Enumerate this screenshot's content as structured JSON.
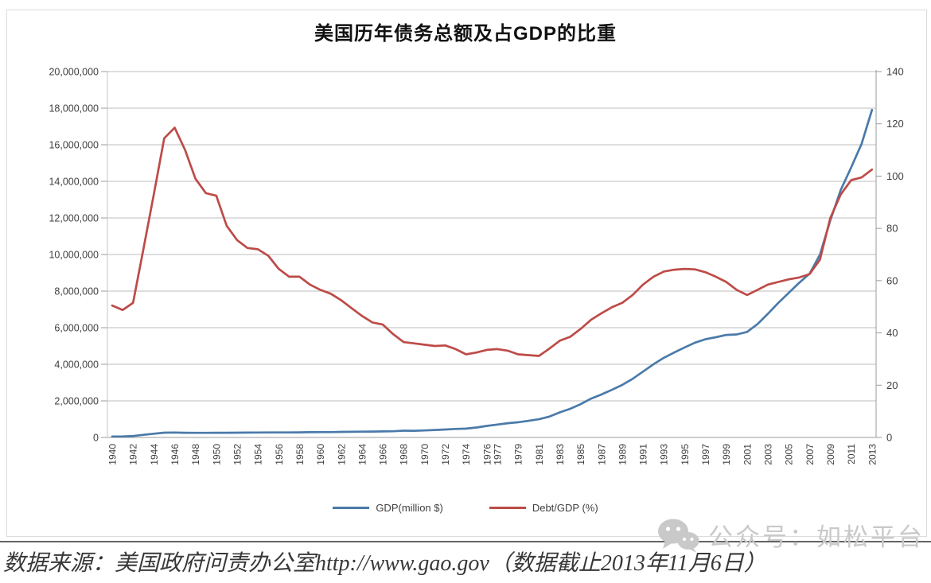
{
  "page": {
    "caption": "数据来源：美国政府问责办公室http://www.gao.gov（数据截止2013年11月6日）",
    "watermark_text": "公众号：如松平台",
    "watermark_icon": "wechat-icon"
  },
  "colors": {
    "gdp_line": "#4a7aa9",
    "debt_gdp_line": "#bd4b47",
    "gridline": "#bcbcbc",
    "axis": "#9b9b9b",
    "tick_text": "#3f3f3f",
    "divider": "#646464",
    "watermark": "#c9c9c9"
  },
  "chart_data": {
    "type": "line",
    "title": "美国历年债务总额及占GDP的比重",
    "grid": true,
    "legend_position": "bottom",
    "x": [
      1940,
      1941,
      1942,
      1943,
      1944,
      1945,
      1946,
      1947,
      1948,
      1949,
      1950,
      1951,
      1952,
      1953,
      1954,
      1955,
      1956,
      1957,
      1958,
      1959,
      1960,
      1961,
      1962,
      1963,
      1964,
      1965,
      1966,
      1967,
      1968,
      1969,
      1970,
      1971,
      1972,
      1973,
      1974,
      1975,
      1976,
      1977,
      1978,
      1979,
      1980,
      1981,
      1982,
      1983,
      1984,
      1985,
      1986,
      1987,
      1988,
      1989,
      1990,
      1991,
      1992,
      1993,
      1994,
      1995,
      1996,
      1997,
      1998,
      1999,
      2000,
      2001,
      2002,
      2003,
      2004,
      2005,
      2006,
      2007,
      2008,
      2009,
      2010,
      2011,
      2012,
      2013
    ],
    "x_axis": {
      "label_rotation_deg": -90,
      "labeled_years": [
        1940,
        1942,
        1944,
        1946,
        1948,
        1950,
        1952,
        1954,
        1956,
        1958,
        1960,
        1962,
        1964,
        1966,
        1968,
        1970,
        1972,
        1974,
        1976,
        1977,
        1979,
        1981,
        1983,
        1985,
        1987,
        1989,
        1991,
        1993,
        1995,
        1997,
        1999,
        2001,
        2003,
        2005,
        2007,
        2009,
        2011,
        2013
      ]
    },
    "y_left": {
      "min": 0,
      "max": 20000000,
      "step": 2000000,
      "tick_labels": [
        "20,000,000",
        "18,000,000",
        "16,000,000",
        "14,000,000",
        "12,000,000",
        "10,000,000",
        "8,000,000",
        "6,000,000",
        "4,000,000",
        "2,000,000",
        "0"
      ]
    },
    "y_right": {
      "min": 0,
      "max": 140,
      "step": 20,
      "tick_labels": [
        "140",
        "120",
        "100",
        "80",
        "60",
        "40",
        "20",
        "0"
      ]
    },
    "series": [
      {
        "name": "GDP(million $)",
        "axis": "left",
        "color": "#4a7aa9",
        "values": [
          50700,
          57500,
          79200,
          142600,
          204100,
          260100,
          271000,
          257100,
          252000,
          252600,
          256900,
          255300,
          259100,
          266000,
          270800,
          274400,
          272700,
          272300,
          279700,
          287500,
          290500,
          292600,
          302900,
          310300,
          316100,
          322300,
          328500,
          340400,
          368700,
          365800,
          380900,
          408200,
          435900,
          466300,
          483900,
          541900,
          629000,
          706400,
          776600,
          829500,
          909000,
          994800,
          1137300,
          1371700,
          1564600,
          1817400,
          2120500,
          2346000,
          2601100,
          2867800,
          3206300,
          3598200,
          4001800,
          4351000,
          4643300,
          4920600,
          5181500,
          5369200,
          5478200,
          5605500,
          5628700,
          5769900,
          6198400,
          6760000,
          7354700,
          7905300,
          8451400,
          8950700,
          9986100,
          11875900,
          13528800,
          14764200,
          16050900,
          17900000
        ]
      },
      {
        "name": "Debt/GDP (%)",
        "axis": "right",
        "color": "#bd4b47",
        "values": [
          50.5,
          48.8,
          51.5,
          72,
          93,
          114.5,
          118.5,
          110,
          99,
          93.5,
          92.5,
          81,
          75.5,
          72.5,
          72,
          69.5,
          64.5,
          61.5,
          61.5,
          58.5,
          56.5,
          55,
          52.5,
          49.5,
          46.5,
          44,
          43.2,
          39.5,
          36.5,
          36,
          35.5,
          35,
          35.2,
          33.8,
          31.8,
          32.5,
          33.5,
          33.8,
          33.2,
          31.8,
          31.5,
          31.2,
          34,
          37,
          38.5,
          41.5,
          45,
          47.5,
          49.8,
          51.5,
          54.5,
          58.5,
          61.5,
          63.5,
          64.2,
          64.5,
          64.3,
          63.2,
          61.5,
          59.5,
          56.5,
          54.5,
          56.5,
          58.5,
          59.5,
          60.5,
          61.2,
          62.5,
          68,
          84,
          93,
          98.5,
          99.5,
          102.5
        ]
      }
    ]
  }
}
